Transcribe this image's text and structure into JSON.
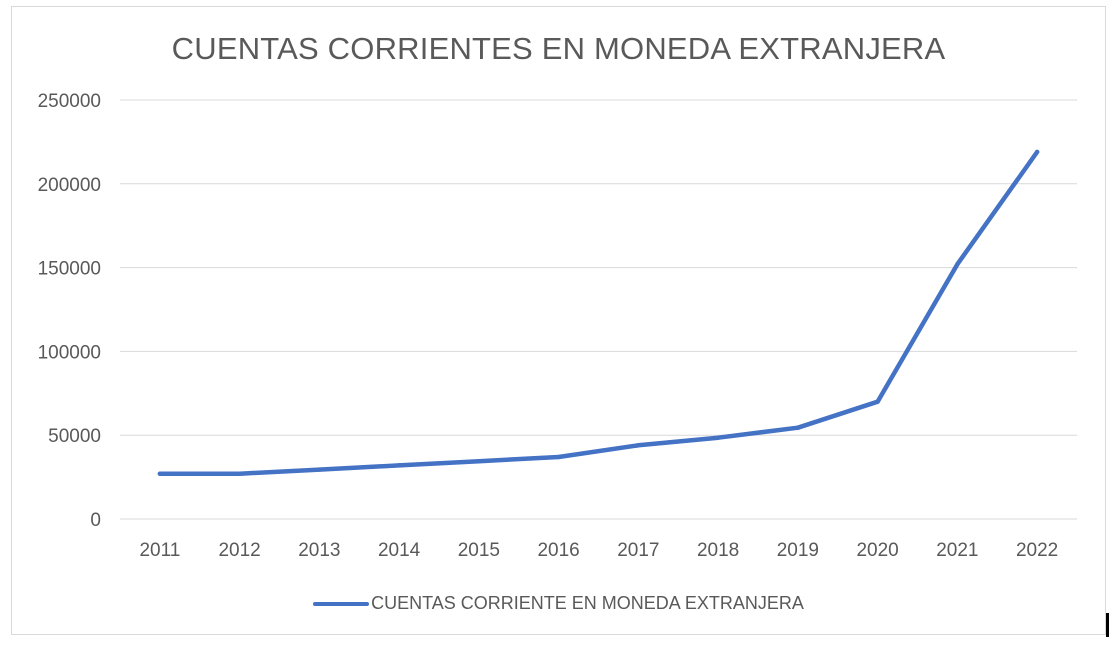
{
  "chart_data": {
    "type": "line",
    "title": "CUENTAS CORRIENTES EN MONEDA EXTRANJERA",
    "xlabel": "",
    "ylabel": "",
    "categories": [
      "2011",
      "2012",
      "2013",
      "2014",
      "2015",
      "2016",
      "2017",
      "2018",
      "2019",
      "2020",
      "2021",
      "2022"
    ],
    "series": [
      {
        "name": "CUENTAS CORRIENTE EN MONEDA EXTRANJERA",
        "color": "#4472c4",
        "values": [
          27000,
          27000,
          29500,
          32000,
          34500,
          37000,
          44000,
          48500,
          54500,
          70000,
          152000,
          219000
        ]
      }
    ],
    "ylim": [
      0,
      250000
    ],
    "yticks": [
      "0",
      "50000",
      "100000",
      "150000",
      "200000",
      "250000"
    ],
    "grid": true,
    "legend_position": "bottom"
  }
}
